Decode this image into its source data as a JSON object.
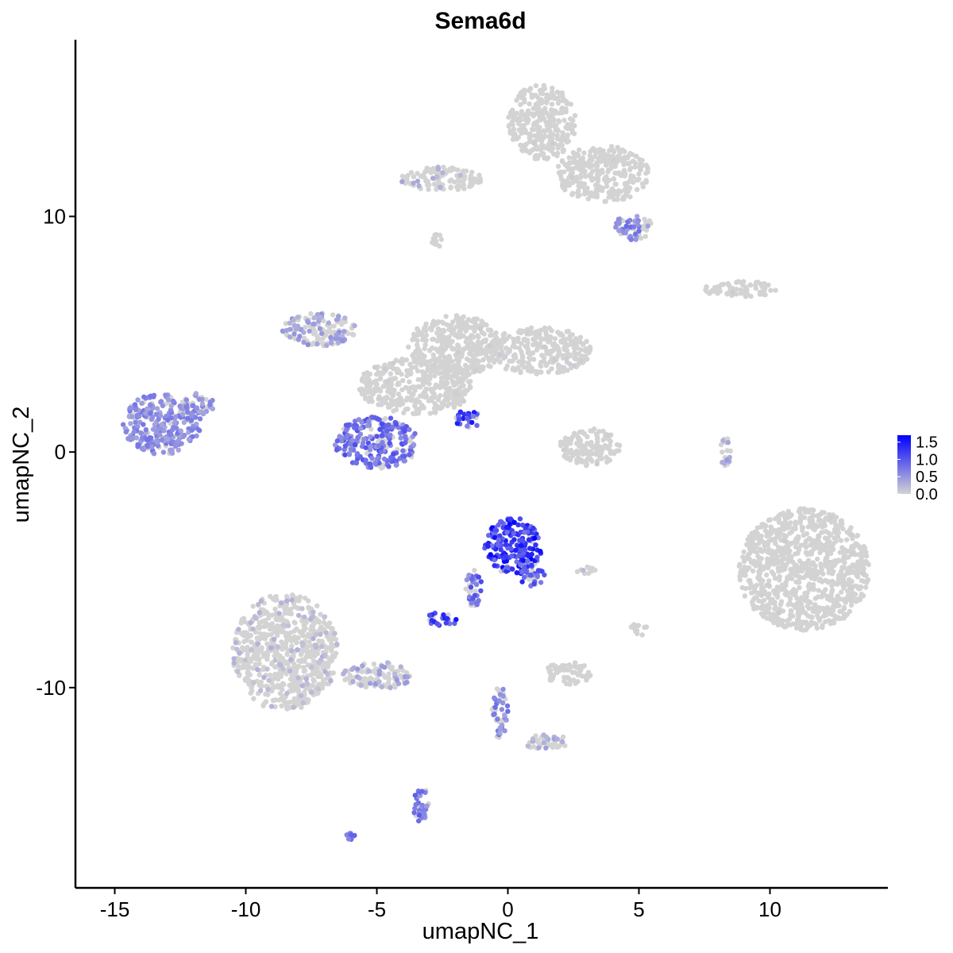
{
  "chart_data": {
    "type": "scatter",
    "title": "Sema6d",
    "xlabel": "umapNC_1",
    "ylabel": "umapNC_2",
    "xlim": [
      -16.5,
      14.5
    ],
    "ylim": [
      -18.5,
      17.5
    ],
    "xticks": [
      -15,
      -10,
      -5,
      0,
      5,
      10
    ],
    "xtick_labels": [
      "-15",
      "-10",
      "-5",
      "0",
      "5",
      "10"
    ],
    "yticks": [
      -10,
      0,
      10
    ],
    "ytick_labels": [
      "-10",
      "0",
      "10"
    ],
    "grid": false,
    "legend_position": "right",
    "color_scale": {
      "low": "#d3d3d3",
      "high": "#0000ff",
      "min": 0,
      "max": 1.7,
      "ticks": [
        0.0,
        0.5,
        1.0,
        1.5
      ],
      "tick_labels": [
        "0.0",
        "0.5",
        "1.0",
        "1.5"
      ]
    },
    "clusters": [
      {
        "cx": -13.2,
        "cy": 1.2,
        "rx": 1.5,
        "ry": 1.3,
        "expr": 0.55,
        "frac": 0.85
      },
      {
        "cx": -11.8,
        "cy": 2.0,
        "rx": 0.6,
        "ry": 0.5,
        "expr": 0.5,
        "frac": 0.6
      },
      {
        "cx": -5.0,
        "cy": 0.4,
        "rx": 1.6,
        "ry": 1.1,
        "expr": 0.8,
        "frac": 0.75
      },
      {
        "cx": -7.2,
        "cy": 5.2,
        "rx": 1.4,
        "ry": 0.7,
        "expr": 0.4,
        "frac": 0.35
      },
      {
        "cx": -3.5,
        "cy": 2.8,
        "rx": 2.2,
        "ry": 1.2,
        "expr": 0.05,
        "frac": 0.03
      },
      {
        "cx": -2.0,
        "cy": 4.5,
        "rx": 1.8,
        "ry": 1.3,
        "expr": 0.05,
        "frac": 0.02
      },
      {
        "cx": 1.2,
        "cy": 4.3,
        "rx": 2.0,
        "ry": 1.0,
        "expr": 0.05,
        "frac": 0.02
      },
      {
        "cx": -1.5,
        "cy": 1.4,
        "rx": 0.5,
        "ry": 0.4,
        "expr": 1.1,
        "frac": 0.8
      },
      {
        "cx": 1.3,
        "cy": 14.0,
        "rx": 1.3,
        "ry": 1.6,
        "expr": 0.05,
        "frac": 0.01
      },
      {
        "cx": 3.6,
        "cy": 11.8,
        "rx": 1.8,
        "ry": 1.2,
        "expr": 0.05,
        "frac": 0.02
      },
      {
        "cx": -2.5,
        "cy": 11.6,
        "rx": 1.6,
        "ry": 0.5,
        "expr": 0.3,
        "frac": 0.1
      },
      {
        "cx": 4.8,
        "cy": 9.6,
        "rx": 0.7,
        "ry": 0.6,
        "expr": 0.6,
        "frac": 0.5
      },
      {
        "cx": 8.9,
        "cy": 6.9,
        "rx": 1.4,
        "ry": 0.35,
        "expr": 0.05,
        "frac": 0.02
      },
      {
        "cx": 11.3,
        "cy": -5.0,
        "rx": 2.5,
        "ry": 2.6,
        "expr": 0.05,
        "frac": 0.01
      },
      {
        "cx": 3.1,
        "cy": 0.2,
        "rx": 1.2,
        "ry": 0.8,
        "expr": 0.05,
        "frac": 0.02
      },
      {
        "cx": 8.3,
        "cy": 0.0,
        "rx": 0.2,
        "ry": 0.7,
        "expr": 0.4,
        "frac": 0.2
      },
      {
        "cx": 0.2,
        "cy": -4.0,
        "rx": 1.1,
        "ry": 1.2,
        "expr": 1.2,
        "frac": 0.95
      },
      {
        "cx": 0.9,
        "cy": -5.2,
        "rx": 0.5,
        "ry": 0.5,
        "expr": 1.0,
        "frac": 0.8
      },
      {
        "cx": -2.5,
        "cy": -7.1,
        "rx": 0.6,
        "ry": 0.3,
        "expr": 1.1,
        "frac": 0.85
      },
      {
        "cx": -1.3,
        "cy": -5.8,
        "rx": 0.3,
        "ry": 0.9,
        "expr": 0.8,
        "frac": 0.6
      },
      {
        "cx": -8.5,
        "cy": -8.5,
        "rx": 2.0,
        "ry": 2.5,
        "expr": 0.2,
        "frac": 0.12
      },
      {
        "cx": -5.0,
        "cy": -9.5,
        "rx": 1.3,
        "ry": 0.6,
        "expr": 0.35,
        "frac": 0.3
      },
      {
        "cx": -3.3,
        "cy": -15.0,
        "rx": 0.3,
        "ry": 0.8,
        "expr": 0.7,
        "frac": 0.7
      },
      {
        "cx": 2.3,
        "cy": -9.4,
        "rx": 0.9,
        "ry": 0.5,
        "expr": 0.05,
        "frac": 0.02
      },
      {
        "cx": -0.3,
        "cy": -11.0,
        "rx": 0.3,
        "ry": 1.2,
        "expr": 0.6,
        "frac": 0.5
      },
      {
        "cx": 1.5,
        "cy": -12.3,
        "rx": 1.0,
        "ry": 0.3,
        "expr": 0.3,
        "frac": 0.25
      },
      {
        "cx": 3.0,
        "cy": -5.0,
        "rx": 0.4,
        "ry": 0.2,
        "expr": 0.3,
        "frac": 0.2
      },
      {
        "cx": 5.0,
        "cy": -7.5,
        "rx": 0.3,
        "ry": 0.3,
        "expr": 0.05,
        "frac": 0.02
      },
      {
        "cx": -6.0,
        "cy": -16.3,
        "rx": 0.2,
        "ry": 0.15,
        "expr": 0.8,
        "frac": 0.9
      },
      {
        "cx": -2.7,
        "cy": 9.0,
        "rx": 0.2,
        "ry": 0.3,
        "expr": 0.05,
        "frac": 0.0
      }
    ]
  }
}
